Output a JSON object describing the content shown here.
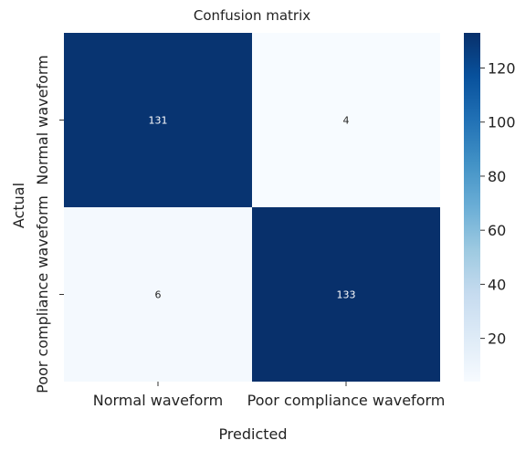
{
  "chart_data": {
    "type": "heatmap",
    "title": "Confusion matrix",
    "xlabel": "Predicted",
    "ylabel": "Actual",
    "x_categories": [
      "Normal waveform",
      "Poor compliance waveform"
    ],
    "y_categories": [
      "Normal waveform",
      "Poor compliance waveform"
    ],
    "values": [
      [
        131,
        4
      ],
      [
        6,
        133
      ]
    ],
    "colorbar": {
      "colormap": "Blues",
      "min": 4,
      "max": 133,
      "ticks": [
        20,
        40,
        60,
        80,
        100,
        120
      ],
      "tick_labels": [
        "20",
        "40",
        "60",
        "80",
        "100",
        "120"
      ]
    },
    "colors": {
      "low": "#f7fbff",
      "high": "#08306b",
      "annotation_dark_text": "#262626",
      "annotation_light_text": "#ffffff"
    }
  }
}
